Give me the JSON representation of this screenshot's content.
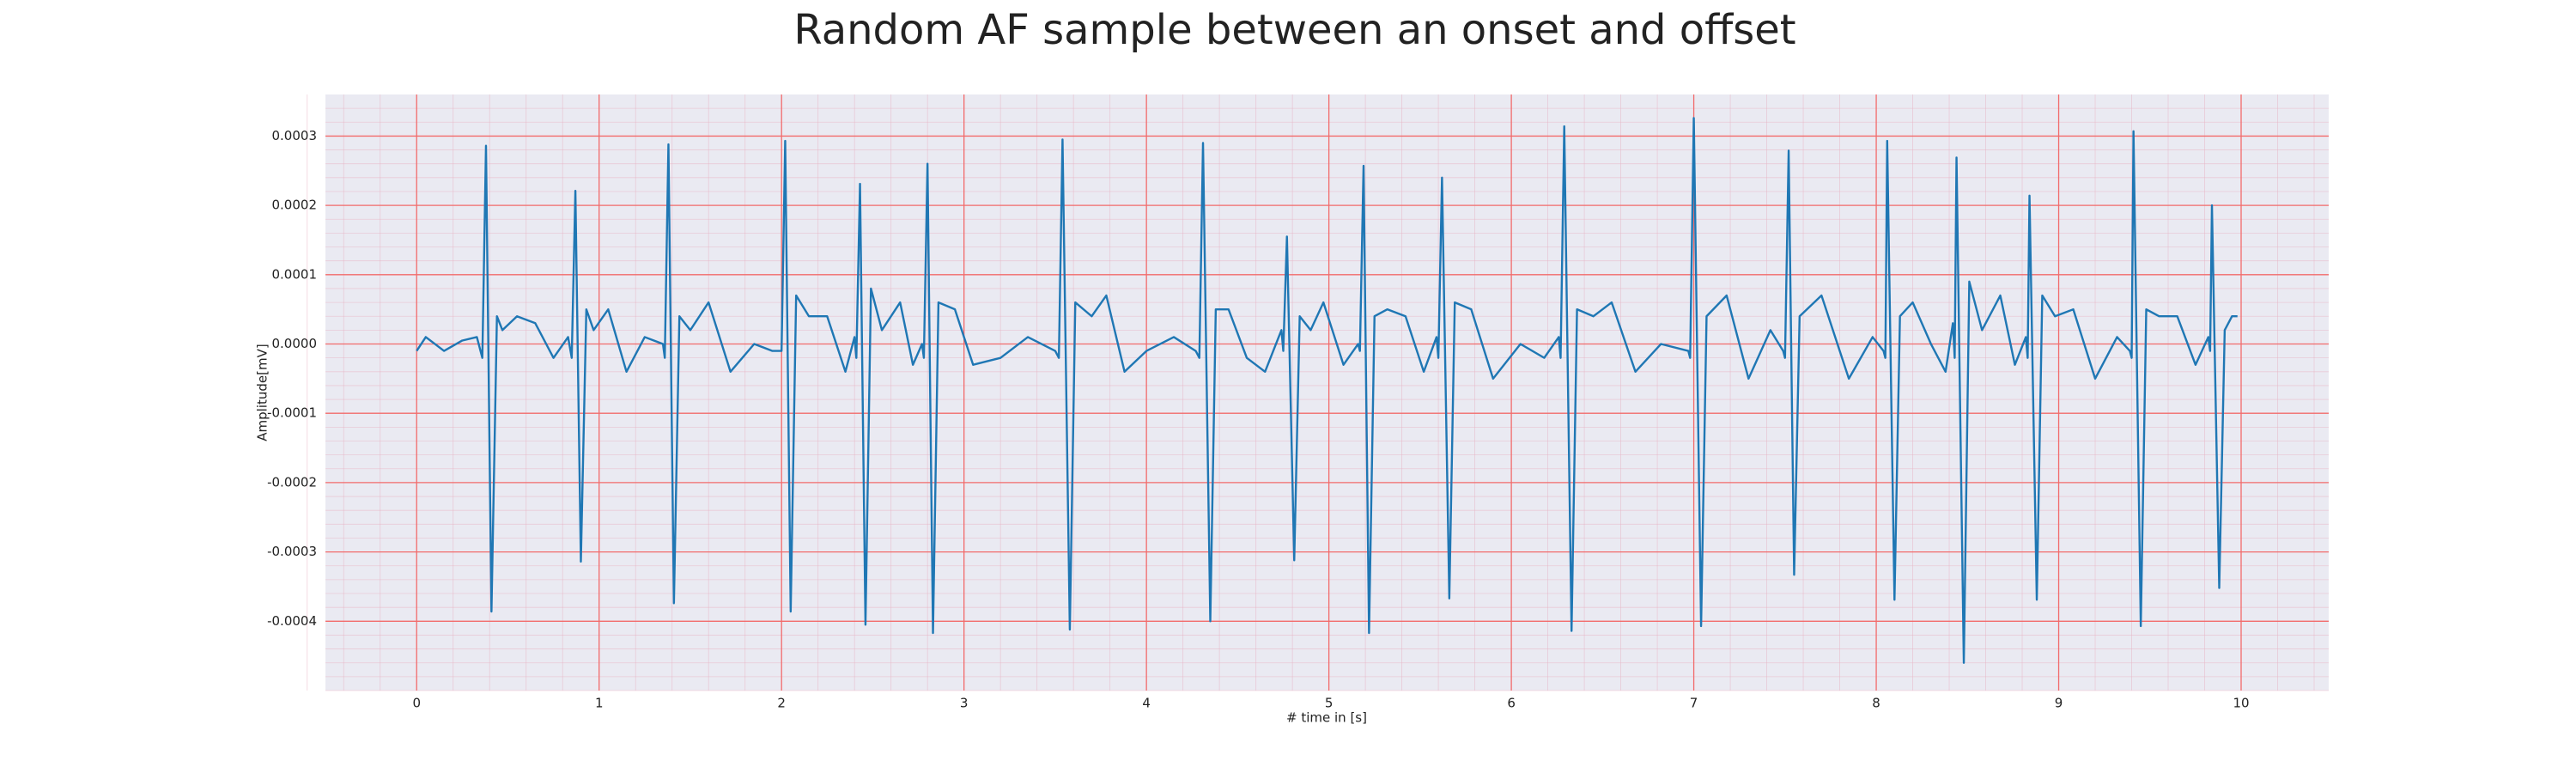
{
  "chart_data": {
    "type": "line",
    "title": "Random AF sample between an onset and offset",
    "x_label": "# time in [s]",
    "y_label": "Amplitude[mV]",
    "color": "#1f77b4",
    "background": "#eaeaf2",
    "grid": true,
    "grid_color": "#f26b6b",
    "minor_grid": true,
    "minor_grid_color": "#e8b4c4",
    "xlim": [
      -0.5,
      10.48
    ],
    "ylim": [
      -0.0005,
      0.00036
    ],
    "xticks": [
      0,
      1,
      2,
      3,
      4,
      5,
      6,
      7,
      8,
      9,
      10
    ],
    "yticks": [
      -0.0004,
      -0.0003,
      -0.0002,
      -0.0001,
      {
        "value": 0,
        "label": "0.0000"
      },
      0.0001,
      0.0002,
      0.0003
    ],
    "x": [
      0,
      0.05,
      0.15,
      0.25,
      0.33,
      0.36,
      0.38,
      0.41,
      0.44,
      0.47,
      0.55,
      0.65,
      0.75,
      0.83,
      0.85,
      0.87,
      0.9,
      0.93,
      0.97,
      1.05,
      1.15,
      1.25,
      1.35,
      1.36,
      1.38,
      1.41,
      1.44,
      1.5,
      1.6,
      1.72,
      1.85,
      1.95,
      2.0,
      2.02,
      2.05,
      2.08,
      2.15,
      2.25,
      2.35,
      2.4,
      2.41,
      2.43,
      2.46,
      2.49,
      2.55,
      2.65,
      2.72,
      2.77,
      2.78,
      2.8,
      2.83,
      2.86,
      2.95,
      3.05,
      3.2,
      3.35,
      3.5,
      3.52,
      3.54,
      3.58,
      3.61,
      3.7,
      3.78,
      3.88,
      4.0,
      4.15,
      4.27,
      4.29,
      4.31,
      4.35,
      4.38,
      4.45,
      4.55,
      4.65,
      4.74,
      4.75,
      4.77,
      4.81,
      4.84,
      4.9,
      4.97,
      5.08,
      5.16,
      5.17,
      5.19,
      5.22,
      5.25,
      5.32,
      5.42,
      5.52,
      5.59,
      5.6,
      5.62,
      5.66,
      5.69,
      5.78,
      5.9,
      6.05,
      6.18,
      6.26,
      6.27,
      6.29,
      6.33,
      6.36,
      6.45,
      6.55,
      6.68,
      6.82,
      6.97,
      6.98,
      7.0,
      7.04,
      7.07,
      7.18,
      7.3,
      7.42,
      7.49,
      7.5,
      7.52,
      7.55,
      7.58,
      7.7,
      7.85,
      7.98,
      8.04,
      8.05,
      8.06,
      8.1,
      8.13,
      8.2,
      8.3,
      8.38,
      8.42,
      8.43,
      8.44,
      8.48,
      8.51,
      8.58,
      8.68,
      8.76,
      8.82,
      8.83,
      8.84,
      8.88,
      8.91,
      8.98,
      9.08,
      9.2,
      9.32,
      9.39,
      9.4,
      9.41,
      9.45,
      9.48,
      9.55,
      9.65,
      9.75,
      9.82,
      9.83,
      9.84,
      9.88,
      9.91,
      9.95,
      9.98
    ],
    "values": [
      -1e-05,
      1e-05,
      -1e-05,
      5e-06,
      1e-05,
      -2e-05,
      0.000286,
      -0.000386,
      4e-05,
      2e-05,
      4e-05,
      3e-05,
      -2e-05,
      1e-05,
      -2e-05,
      0.000221,
      -0.000314,
      5e-05,
      2e-05,
      5e-05,
      -4e-05,
      1e-05,
      0.0,
      -2e-05,
      0.000288,
      -0.000374,
      4e-05,
      2e-05,
      6e-05,
      -4e-05,
      0.0,
      -1e-05,
      -1e-05,
      0.000293,
      -0.000386,
      7e-05,
      4e-05,
      4e-05,
      -4e-05,
      1e-05,
      -2e-05,
      0.000231,
      -0.000405,
      8e-05,
      2e-05,
      6e-05,
      -3e-05,
      0.0,
      -2e-05,
      0.00026,
      -0.000417,
      6e-05,
      5e-05,
      -3e-05,
      -2e-05,
      1e-05,
      -1e-05,
      -2e-05,
      0.000295,
      -0.000412,
      6e-05,
      4e-05,
      7e-05,
      -4e-05,
      -1e-05,
      1e-05,
      -1e-05,
      -2e-05,
      0.00029,
      -0.0004,
      5e-05,
      5e-05,
      -2e-05,
      -4e-05,
      2e-05,
      -1e-05,
      0.000155,
      -0.000312,
      4e-05,
      2e-05,
      6e-05,
      -3e-05,
      0.0,
      -1e-05,
      0.000257,
      -0.000417,
      4e-05,
      5e-05,
      4e-05,
      -4e-05,
      1e-05,
      -2e-05,
      0.00024,
      -0.000367,
      6e-05,
      5e-05,
      -5e-05,
      0.0,
      -2e-05,
      1e-05,
      -2e-05,
      0.000314,
      -0.000414,
      5e-05,
      4e-05,
      6e-05,
      -4e-05,
      0.0,
      -1e-05,
      -2e-05,
      0.000326,
      -0.000407,
      4e-05,
      7e-05,
      -5e-05,
      2e-05,
      -1e-05,
      -2e-05,
      0.000279,
      -0.000333,
      4e-05,
      7e-05,
      -5e-05,
      1e-05,
      -1e-05,
      -2e-05,
      0.000293,
      -0.000369,
      4e-05,
      6e-05,
      0.0,
      -4e-05,
      3e-05,
      -2e-05,
      0.000269,
      -0.00046,
      9e-05,
      2e-05,
      7e-05,
      -3e-05,
      1e-05,
      -2e-05,
      0.000214,
      -0.000369,
      7e-05,
      4e-05,
      5e-05,
      -5e-05,
      1e-05,
      -1e-05,
      -2e-05,
      0.000307,
      -0.000407,
      5e-05,
      4e-05,
      4e-05,
      -3e-05,
      1e-05,
      -1e-05,
      0.0002,
      -0.000352,
      2e-05,
      4e-05,
      4e-05
    ]
  }
}
